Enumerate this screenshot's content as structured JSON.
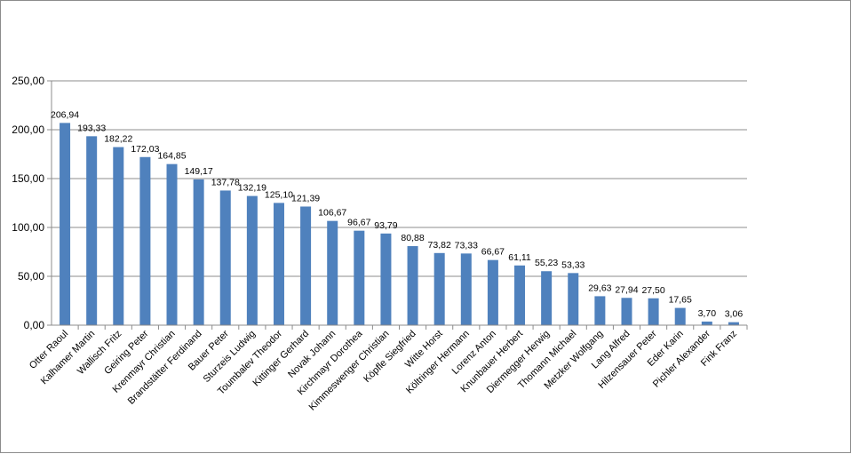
{
  "chart_data": {
    "type": "bar",
    "title": "",
    "xlabel": "",
    "ylabel": "",
    "ylim": [
      0,
      250
    ],
    "yticks": [
      "0,00",
      "50,00",
      "100,00",
      "150,00",
      "200,00",
      "250,00"
    ],
    "grid": true,
    "legend": "none",
    "bar_color": "#4f81bd",
    "categories": [
      "Otter Raoul",
      "Kalhamer Martin",
      "Wallisch Fritz",
      "Geiring Peter",
      "Krenmayr Christian",
      "Brandstätter Ferdinand",
      "Bauer Peter",
      "Sturzeis Ludwig",
      "Toumbalev Theodor",
      "Kittinger Gerhard",
      "Novak Johann",
      "Kirchmayr Dorothea",
      "Kimmeswenger Christian",
      "Köpfle Siegfried",
      "Witte Horst",
      "Költringer Hermann",
      "Lorenz Anton",
      "Knunbauer Herbert",
      "Diermegger Herwig",
      "Thomann Michael",
      "Metzker Wolfgang",
      "Lang Alfred",
      "Hilzensauer Peter",
      "Eder Karin",
      "Pichler Alexander",
      "Fink Franz"
    ],
    "values": [
      206.94,
      193.33,
      182.22,
      172.03,
      164.85,
      149.17,
      137.78,
      132.19,
      125.1,
      121.39,
      106.67,
      96.67,
      93.79,
      80.88,
      73.82,
      73.33,
      66.67,
      61.11,
      55.23,
      53.33,
      29.63,
      27.94,
      27.5,
      17.65,
      3.7,
      3.06
    ],
    "value_labels": [
      "206,94",
      "193,33",
      "182,22",
      "172,03",
      "164,85",
      "149,17",
      "137,78",
      "132,19",
      "125,10",
      "121,39",
      "106,67",
      "96,67",
      "93,79",
      "80,88",
      "73,82",
      "73,33",
      "66,67",
      "61,11",
      "55,23",
      "53,33",
      "29,63",
      "27,94",
      "27,50",
      "17,65",
      "3,70",
      "3,06"
    ]
  }
}
